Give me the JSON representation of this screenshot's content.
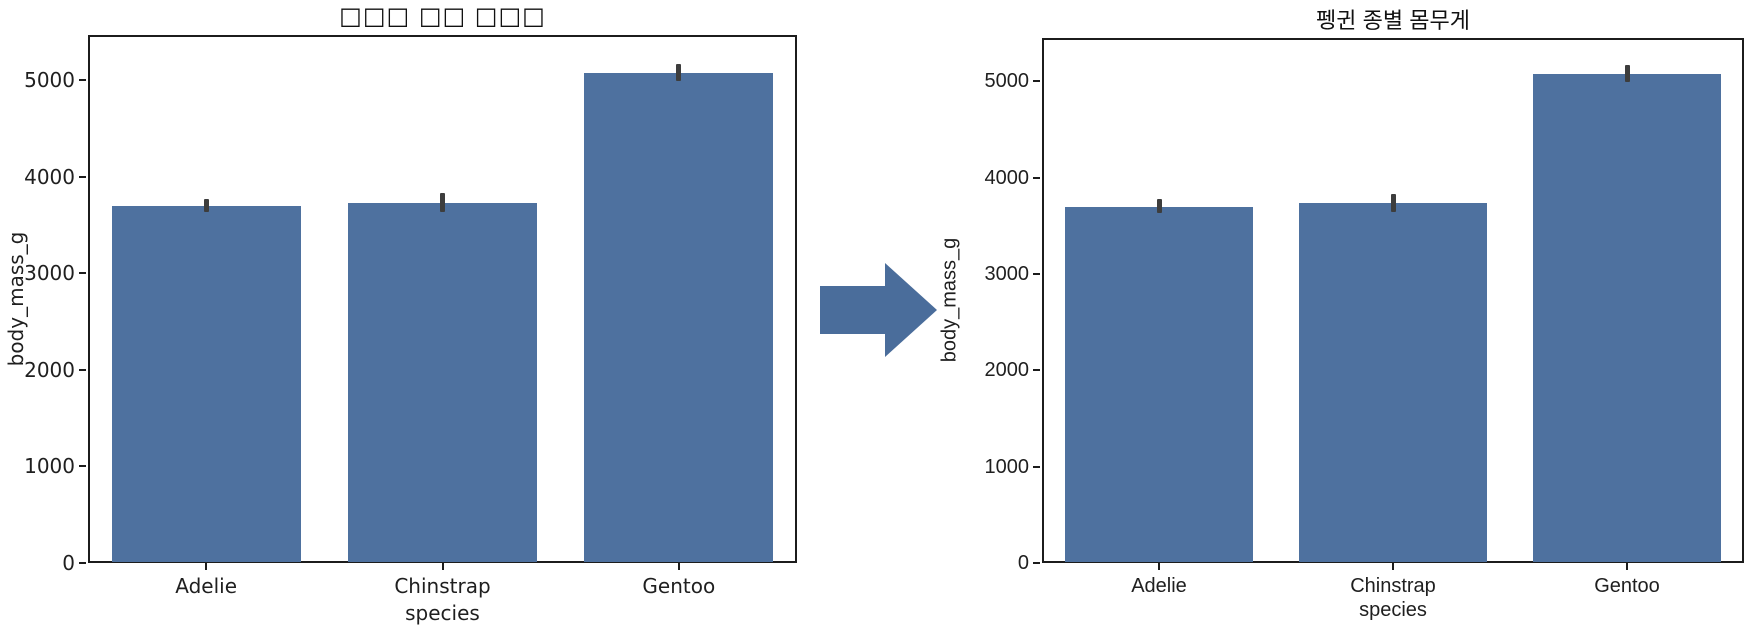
{
  "arrow": {
    "shape": "right-block-arrow",
    "color": "#4a6d9b"
  },
  "chart_data": [
    {
      "type": "bar",
      "panel": "left",
      "title": "□□□ □□ □□□",
      "xlabel": "species",
      "ylabel": "body_mass_g",
      "categories": [
        "Adelie",
        "Chinstrap",
        "Gentoo"
      ],
      "values": [
        3700,
        3733,
        5076
      ],
      "error_bars": {
        "low": [
          3632,
          3641,
          4989
        ],
        "high": [
          3775,
          3832,
          5166
        ]
      },
      "yticks": [
        0,
        1000,
        2000,
        3000,
        4000,
        5000
      ],
      "ylim": [
        0,
        5470
      ],
      "grid": false,
      "legend": false,
      "bar_color": "#4e719f",
      "error_color": "#3d3d3d"
    },
    {
      "type": "bar",
      "panel": "right",
      "title": "펭귄 종별 몸무게",
      "xlabel": "species",
      "ylabel": "body_mass_g",
      "categories": [
        "Adelie",
        "Chinstrap",
        "Gentoo"
      ],
      "values": [
        3700,
        3733,
        5076
      ],
      "error_bars": {
        "low": [
          3632,
          3641,
          4989
        ],
        "high": [
          3775,
          3832,
          5166
        ]
      },
      "yticks": [
        0,
        1000,
        2000,
        3000,
        4000,
        5000
      ],
      "ylim": [
        0,
        5450
      ],
      "grid": false,
      "legend": false,
      "bar_color": "#4e719f",
      "error_color": "#3d3d3d"
    }
  ]
}
